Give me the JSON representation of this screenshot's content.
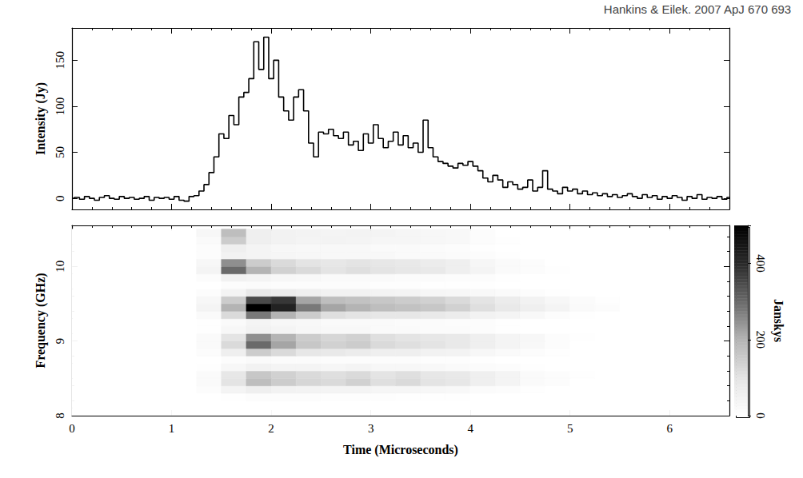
{
  "chart_data": [
    {
      "type": "line",
      "annotation": "Hankins & Eilek. 2007 ApJ 670 693",
      "y_label": "Intensity (Jy)",
      "color": "#000000",
      "line_style": "step",
      "grid": false,
      "tick_labels": "y",
      "xlim": [
        0,
        6.6
      ],
      "xticks": [
        0,
        1,
        2,
        3,
        4,
        5,
        6
      ],
      "ylim": [
        -12,
        185
      ],
      "yticks": [
        0,
        50,
        100,
        150
      ],
      "x": [
        0,
        0.05,
        0.1,
        0.15,
        0.2,
        0.25,
        0.3,
        0.35,
        0.4,
        0.45,
        0.5,
        0.55,
        0.6,
        0.65,
        0.7,
        0.75,
        0.8,
        0.85,
        0.9,
        0.95,
        1.0,
        1.05,
        1.1,
        1.15,
        1.2,
        1.25,
        1.3,
        1.35,
        1.4,
        1.45,
        1.5,
        1.55,
        1.6,
        1.65,
        1.7,
        1.75,
        1.8,
        1.85,
        1.9,
        1.95,
        2.0,
        2.05,
        2.1,
        2.15,
        2.2,
        2.25,
        2.3,
        2.35,
        2.4,
        2.45,
        2.5,
        2.55,
        2.6,
        2.65,
        2.7,
        2.75,
        2.8,
        2.85,
        2.9,
        2.95,
        3.0,
        3.05,
        3.1,
        3.15,
        3.2,
        3.25,
        3.3,
        3.35,
        3.4,
        3.45,
        3.5,
        3.55,
        3.6,
        3.65,
        3.7,
        3.75,
        3.8,
        3.85,
        3.9,
        3.95,
        4.0,
        4.05,
        4.1,
        4.15,
        4.2,
        4.25,
        4.3,
        4.35,
        4.4,
        4.45,
        4.5,
        4.55,
        4.6,
        4.65,
        4.7,
        4.75,
        4.8,
        4.85,
        4.9,
        4.95,
        5.0,
        5.05,
        5.1,
        5.15,
        5.2,
        5.25,
        5.3,
        5.35,
        5.4,
        5.45,
        5.5,
        5.55,
        5.6,
        5.65,
        5.7,
        5.75,
        5.8,
        5.85,
        5.9,
        5.95,
        6.0,
        6.05,
        6.1,
        6.15,
        6.2,
        6.25,
        6.3,
        6.35,
        6.4,
        6.45,
        6.5,
        6.55,
        6.6
      ],
      "values": [
        0,
        1,
        -1,
        2,
        0,
        -2,
        1,
        3,
        0,
        -1,
        2,
        0,
        1,
        -1,
        0,
        2,
        -2,
        1,
        0,
        1,
        -1,
        2,
        -2,
        -3,
        2,
        3,
        8,
        15,
        28,
        45,
        70,
        65,
        90,
        80,
        110,
        115,
        130,
        170,
        140,
        175,
        130,
        150,
        110,
        95,
        85,
        110,
        118,
        95,
        60,
        45,
        72,
        70,
        75,
        68,
        65,
        72,
        58,
        62,
        52,
        70,
        60,
        80,
        65,
        55,
        62,
        72,
        58,
        68,
        55,
        60,
        50,
        85,
        55,
        45,
        40,
        38,
        35,
        33,
        38,
        36,
        40,
        35,
        30,
        22,
        18,
        25,
        20,
        12,
        18,
        15,
        10,
        12,
        20,
        8,
        12,
        30,
        10,
        8,
        5,
        12,
        8,
        10,
        5,
        8,
        4,
        6,
        3,
        5,
        2,
        4,
        1,
        3,
        5,
        2,
        0,
        4,
        1,
        3,
        -1,
        2,
        0,
        3,
        1,
        -2,
        2,
        0,
        4,
        -1,
        1,
        0,
        2,
        -1,
        1
      ]
    },
    {
      "type": "heatmap",
      "x_label": "Time (Microseconds)",
      "y_label": "Frequency (GHz)",
      "xlim": [
        0,
        6.6
      ],
      "xticks": [
        0,
        1,
        2,
        3,
        4,
        5,
        6
      ],
      "ylim": [
        8,
        10.55
      ],
      "yticks": [
        8,
        9,
        10
      ],
      "x": [
        0.125,
        0.375,
        0.625,
        0.875,
        1.125,
        1.375,
        1.625,
        1.875,
        2.125,
        2.375,
        2.625,
        2.875,
        3.125,
        3.375,
        3.625,
        3.875,
        4.125,
        4.375,
        4.625,
        4.875,
        5.125,
        5.375,
        5.625,
        5.875,
        6.125,
        6.375
      ],
      "y": [
        8.05,
        8.15,
        8.25,
        8.35,
        8.45,
        8.55,
        8.65,
        8.75,
        8.85,
        8.95,
        9.05,
        9.15,
        9.25,
        9.35,
        9.45,
        9.55,
        9.65,
        9.75,
        9.85,
        9.95,
        10.05,
        10.15,
        10.25,
        10.35,
        10.45
      ],
      "cells": [
        [
          0,
          0,
          0,
          0,
          0,
          0,
          0,
          0,
          0,
          0,
          0,
          0,
          0,
          0,
          0,
          0,
          0,
          0,
          0,
          0,
          0,
          0,
          0,
          0,
          0,
          0
        ],
        [
          0,
          0,
          0,
          0,
          0,
          0,
          0,
          0,
          0,
          0,
          0,
          0,
          0,
          0,
          0,
          0,
          0,
          0,
          0,
          0,
          0,
          0,
          0,
          0,
          0,
          0
        ],
        [
          0,
          0,
          0,
          0,
          0,
          0,
          5,
          10,
          10,
          10,
          8,
          8,
          8,
          5,
          5,
          5,
          0,
          0,
          0,
          0,
          0,
          0,
          0,
          0,
          0,
          0
        ],
        [
          0,
          0,
          0,
          0,
          0,
          10,
          40,
          60,
          50,
          45,
          40,
          40,
          35,
          35,
          30,
          25,
          15,
          10,
          5,
          0,
          0,
          0,
          0,
          0,
          0,
          0
        ],
        [
          0,
          0,
          0,
          0,
          0,
          20,
          100,
          180,
          150,
          130,
          120,
          140,
          110,
          120,
          100,
          90,
          60,
          40,
          20,
          10,
          0,
          0,
          0,
          0,
          0,
          0
        ],
        [
          0,
          0,
          0,
          0,
          0,
          20,
          90,
          160,
          140,
          120,
          110,
          120,
          100,
          110,
          90,
          80,
          60,
          40,
          20,
          10,
          5,
          0,
          0,
          0,
          0,
          0
        ],
        [
          0,
          0,
          0,
          0,
          0,
          5,
          30,
          50,
          40,
          40,
          35,
          40,
          30,
          30,
          25,
          20,
          15,
          10,
          5,
          0,
          0,
          0,
          0,
          0,
          0,
          0
        ],
        [
          0,
          0,
          0,
          0,
          0,
          0,
          10,
          20,
          15,
          15,
          12,
          12,
          10,
          10,
          8,
          8,
          5,
          0,
          0,
          0,
          0,
          0,
          0,
          0,
          0,
          0
        ],
        [
          0,
          0,
          0,
          0,
          0,
          10,
          60,
          150,
          120,
          90,
          80,
          70,
          60,
          60,
          50,
          45,
          30,
          20,
          10,
          5,
          0,
          0,
          0,
          0,
          0,
          0
        ],
        [
          0,
          0,
          0,
          0,
          0,
          20,
          120,
          300,
          220,
          160,
          140,
          150,
          120,
          110,
          100,
          80,
          60,
          40,
          25,
          10,
          0,
          0,
          0,
          0,
          0,
          0
        ],
        [
          0,
          0,
          0,
          0,
          0,
          20,
          100,
          250,
          200,
          150,
          130,
          140,
          110,
          100,
          90,
          80,
          60,
          40,
          30,
          10,
          5,
          0,
          0,
          0,
          0,
          0
        ],
        [
          0,
          0,
          0,
          0,
          0,
          5,
          30,
          50,
          40,
          30,
          25,
          25,
          20,
          20,
          15,
          15,
          10,
          5,
          0,
          0,
          0,
          0,
          0,
          0,
          0,
          0
        ],
        [
          0,
          0,
          0,
          0,
          0,
          5,
          20,
          40,
          30,
          25,
          20,
          20,
          20,
          15,
          15,
          10,
          10,
          5,
          0,
          0,
          0,
          0,
          0,
          0,
          0,
          0
        ],
        [
          0,
          0,
          0,
          0,
          0,
          20,
          120,
          280,
          200,
          150,
          110,
          100,
          90,
          90,
          80,
          70,
          50,
          40,
          25,
          10,
          5,
          0,
          0,
          0,
          0,
          0
        ],
        [
          0,
          0,
          0,
          0,
          0,
          40,
          200,
          500,
          420,
          280,
          220,
          200,
          180,
          170,
          160,
          140,
          110,
          80,
          60,
          40,
          20,
          10,
          0,
          0,
          0,
          0
        ],
        [
          0,
          0,
          0,
          0,
          0,
          30,
          150,
          350,
          380,
          220,
          180,
          170,
          160,
          150,
          140,
          120,
          100,
          70,
          50,
          30,
          15,
          5,
          0,
          0,
          0,
          0
        ],
        [
          0,
          0,
          0,
          0,
          0,
          10,
          40,
          80,
          70,
          60,
          50,
          50,
          45,
          40,
          35,
          30,
          25,
          20,
          10,
          5,
          0,
          0,
          0,
          0,
          0,
          0
        ],
        [
          0,
          0,
          0,
          0,
          0,
          0,
          10,
          15,
          10,
          10,
          10,
          10,
          8,
          8,
          5,
          5,
          5,
          0,
          0,
          0,
          0,
          0,
          0,
          0,
          0,
          0
        ],
        [
          0,
          0,
          0,
          0,
          0,
          10,
          50,
          40,
          30,
          25,
          20,
          20,
          20,
          15,
          15,
          10,
          10,
          5,
          0,
          0,
          0,
          0,
          0,
          0,
          0,
          0
        ],
        [
          0,
          0,
          0,
          0,
          0,
          40,
          300,
          200,
          140,
          120,
          100,
          110,
          100,
          90,
          80,
          60,
          40,
          20,
          10,
          5,
          0,
          0,
          0,
          0,
          0,
          0
        ],
        [
          0,
          0,
          0,
          0,
          0,
          30,
          250,
          150,
          120,
          100,
          90,
          100,
          90,
          80,
          70,
          60,
          35,
          20,
          10,
          0,
          0,
          0,
          0,
          0,
          0,
          0
        ],
        [
          0,
          0,
          0,
          0,
          0,
          10,
          50,
          40,
          35,
          30,
          25,
          25,
          25,
          20,
          20,
          15,
          10,
          5,
          0,
          0,
          0,
          0,
          0,
          0,
          0,
          0
        ],
        [
          0,
          0,
          0,
          0,
          0,
          10,
          60,
          40,
          30,
          25,
          25,
          25,
          20,
          20,
          15,
          10,
          5,
          0,
          0,
          0,
          0,
          0,
          0,
          0,
          0,
          0
        ],
        [
          0,
          0,
          0,
          0,
          0,
          20,
          150,
          60,
          50,
          40,
          45,
          40,
          35,
          35,
          30,
          25,
          10,
          5,
          0,
          0,
          0,
          0,
          0,
          0,
          0,
          0
        ],
        [
          0,
          0,
          0,
          0,
          0,
          30,
          180,
          60,
          50,
          45,
          40,
          45,
          40,
          35,
          30,
          25,
          10,
          0,
          0,
          0,
          0,
          0,
          0,
          0,
          0,
          0
        ]
      ],
      "colorbar": {
        "range": [
          0,
          500
        ],
        "ticks": [
          0,
          200,
          400
        ],
        "label": "Janskys"
      }
    }
  ]
}
